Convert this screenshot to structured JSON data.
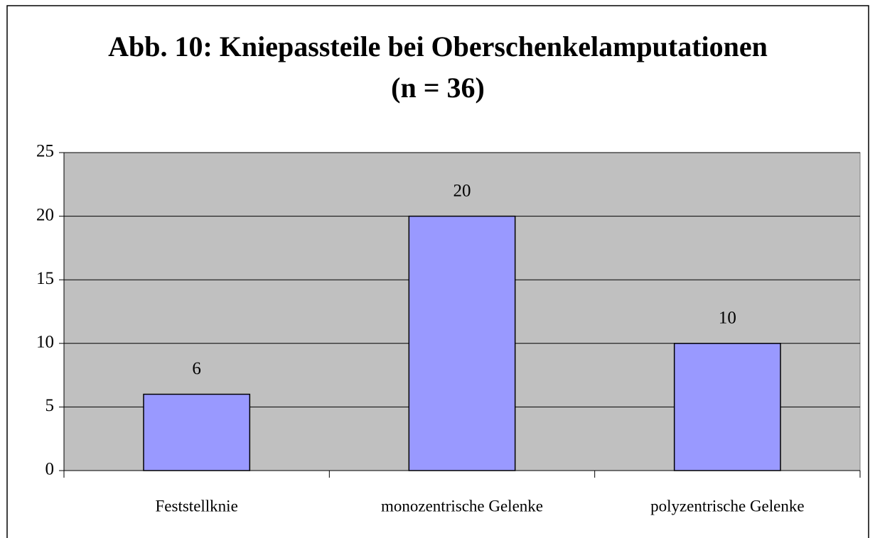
{
  "chart_data": {
    "type": "bar",
    "title": "Abb. 10: Kniepassteile bei Oberschenkelamputationen",
    "subtitle": "(n = 36)",
    "categories": [
      "Feststellknie",
      "monozentrische Gelenke",
      "polyzentrische Gelenke"
    ],
    "values": [
      6,
      20,
      10
    ],
    "color": "#9999ff",
    "ylim": [
      0,
      25
    ],
    "yticks": [
      0,
      5,
      10,
      15,
      20,
      25
    ],
    "grid": true
  }
}
